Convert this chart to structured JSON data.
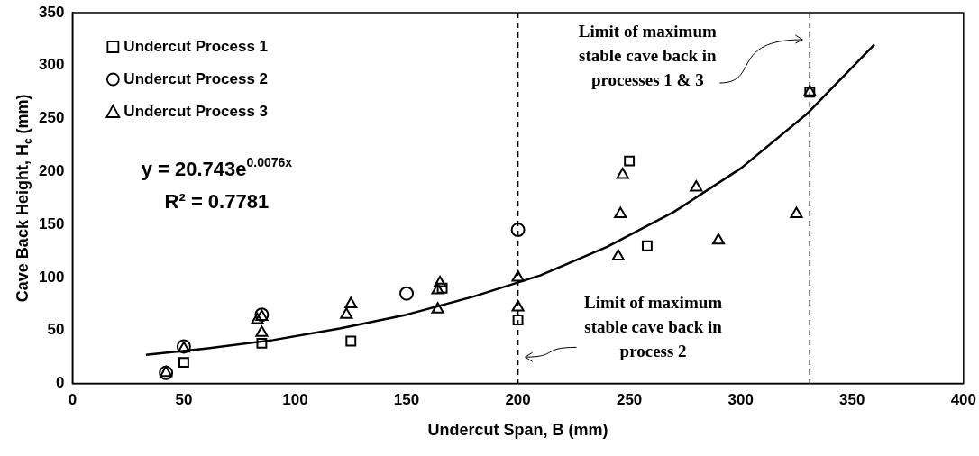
{
  "chart_data": {
    "type": "scatter",
    "xlabel": "Undercut Span, B (mm)",
    "ylabel": "Cave Back Height, H$_{c}$ (mm)",
    "xlim": [
      0,
      400
    ],
    "xticks": [
      0,
      50,
      100,
      150,
      200,
      250,
      300,
      350,
      400
    ],
    "ylim": [
      0,
      350
    ],
    "yticks": [
      0,
      50,
      100,
      150,
      200,
      250,
      300,
      350
    ],
    "grid": false,
    "legend": "top left",
    "series": [
      {
        "name": "Undercut Process 1",
        "marker": "square",
        "color": "#000000",
        "x": [
          50,
          85,
          125,
          166,
          200,
          250,
          258,
          331
        ],
        "values": [
          20,
          38,
          40,
          90,
          60,
          210,
          130,
          275
        ]
      },
      {
        "name": "Undercut Process 2",
        "marker": "circle",
        "color": "#000000",
        "x": [
          42,
          50,
          85,
          150,
          200
        ],
        "values": [
          10,
          35,
          65,
          85,
          145
        ]
      },
      {
        "name": "Undercut Process 3",
        "marker": "triangle",
        "color": "#000000",
        "x": [
          42,
          50,
          83,
          85,
          85,
          123,
          125,
          164,
          164,
          165,
          200,
          200,
          245,
          246,
          247,
          280,
          290,
          325,
          331
        ],
        "values": [
          10,
          33,
          60,
          48,
          63,
          65,
          75,
          70,
          88,
          95,
          72,
          100,
          120,
          160,
          197,
          185,
          135,
          160,
          275
        ]
      },
      {
        "type": "line",
        "marker": "none",
        "line_style": "solid",
        "color": "#000000",
        "x": [
          33,
          60,
          90,
          120,
          150,
          180,
          210,
          240,
          270,
          300,
          330,
          360
        ],
        "values": [
          27,
          33,
          41,
          52,
          65,
          82,
          102,
          129,
          162,
          203,
          255,
          320
        ]
      }
    ],
    "ref_lines": [
      {
        "axis": "x",
        "value": 200,
        "label": "Limit of maximum\nstable cave back in\nprocess 2",
        "color": "#000000",
        "line_style": "dashed"
      },
      {
        "axis": "x",
        "value": 331,
        "label": "Limit of maximum\nstable cave back in\nprocesses 1 & 3",
        "color": "#000000",
        "line_style": "dashed"
      }
    ],
    "annotations": [
      "y = 20.743e$^{0.0076x}$",
      "R² = 0.7781"
    ]
  }
}
